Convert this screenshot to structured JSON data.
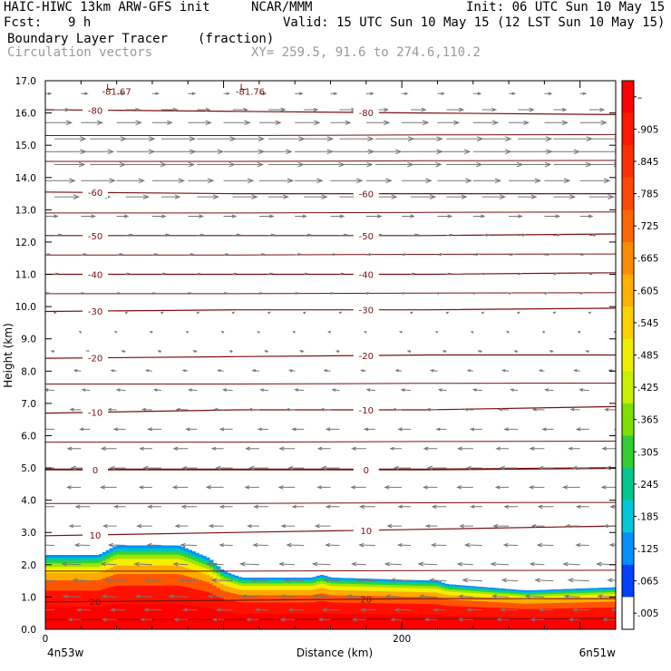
{
  "header": {
    "model": "HAIC-HIWC 13km ARW-GFS init",
    "org": "NCAR/MMM",
    "init": "Init: 06 UTC Sun 10 May 15",
    "fcst_label": "Fcst:",
    "fcst_value": "9 h",
    "valid": "Valid: 15 UTC Sun 10 May 15 (12 LST Sun 10 May 15)",
    "field": "Boundary Layer Tracer",
    "units": "(fraction)",
    "vectors": "Circulation vectors",
    "xy": "XY= 259.5, 91.6 to 274.6,110.2"
  },
  "chart_data": {
    "type": "heatmap",
    "ylabel": "Height (km)",
    "xlabel": "Distance (km)",
    "ylim": [
      0,
      17
    ],
    "yticks": [
      "0.0",
      "1.0",
      "2.0",
      "3.0",
      "4.0",
      "5.0",
      "6.0",
      "7.0",
      "8.0",
      "9.0",
      "10.0",
      "11.0",
      "12.0",
      "13.0",
      "14.0",
      "15.0",
      "16.0",
      "17.0"
    ],
    "xlim": [
      0,
      320
    ],
    "xticks": [
      {
        "value": 0,
        "label": "0"
      },
      {
        "value": 200,
        "label": "200"
      }
    ],
    "x_end_labels": {
      "left": "4n53w",
      "right": "6n51w"
    },
    "colorbar": {
      "labels": [
        "–",
        ".905",
        ".845",
        ".785",
        ".725",
        ".665",
        ".605",
        ".545",
        ".485",
        ".425",
        ".365",
        ".305",
        ".245",
        ".185",
        ".125",
        ".065",
        ".005"
      ],
      "colors": [
        "#ff0000",
        "#ff1800",
        "#ff3000",
        "#ff4800",
        "#ff6800",
        "#ff8c00",
        "#ffb000",
        "#ffd000",
        "#f0ee00",
        "#c8f000",
        "#7ee000",
        "#30d030",
        "#00c890",
        "#00c8d8",
        "#0090ff",
        "#0040ff",
        "#ffffff"
      ]
    },
    "tracer_top_km": [
      [
        0,
        2.3
      ],
      [
        30,
        2.3
      ],
      [
        40,
        2.6
      ],
      [
        75,
        2.6
      ],
      [
        92,
        2.2
      ],
      [
        100,
        1.8
      ],
      [
        110,
        1.6
      ],
      [
        150,
        1.6
      ],
      [
        155,
        1.7
      ],
      [
        160,
        1.6
      ],
      [
        220,
        1.5
      ],
      [
        225,
        1.4
      ],
      [
        270,
        1.2
      ],
      [
        320,
        1.3
      ]
    ],
    "temperature_contours": [
      {
        "level": 20,
        "label": "20",
        "z": [
          0.85,
          0.9,
          0.95,
          0.95
        ]
      },
      {
        "level": 10,
        "label": "10",
        "z": [
          2.9,
          3.0,
          3.1,
          3.2
        ]
      },
      {
        "level": 0,
        "label": "0",
        "z": [
          4.95,
          4.95,
          4.95,
          5.0
        ]
      },
      {
        "level": -10,
        "label": "-10",
        "z": [
          6.7,
          6.8,
          6.8,
          6.9
        ]
      },
      {
        "level": -20,
        "label": "-20",
        "z": [
          8.4,
          8.45,
          8.5,
          8.5
        ]
      },
      {
        "level": -30,
        "label": "-30",
        "z": [
          9.85,
          9.9,
          9.9,
          9.95
        ]
      },
      {
        "level": -40,
        "label": "-40",
        "z": [
          11.0,
          11.0,
          11.0,
          11.05
        ]
      },
      {
        "level": -50,
        "label": "-50",
        "z": [
          12.2,
          12.2,
          12.2,
          12.25
        ]
      },
      {
        "level": -60,
        "label": "-60",
        "z": [
          13.55,
          13.5,
          13.5,
          13.5
        ]
      },
      {
        "level": -80,
        "label": "-80",
        "z": [
          16.1,
          16.05,
          16.0,
          15.95
        ]
      }
    ],
    "temperature_lines_unlabeled_km": [
      0.3,
      1.8,
      3.9,
      5.8,
      7.6,
      10.4,
      11.6,
      12.9,
      14.5,
      15.3
    ],
    "minimum_labels": [
      {
        "text": "-81.67",
        "x": 40,
        "z": 16.9
      },
      {
        "text": "-81.76",
        "x": 115,
        "z": 16.9
      }
    ],
    "wind_profile": [
      {
        "z": 0.3,
        "u": -1.5,
        "w": 0.0
      },
      {
        "z": 0.6,
        "u": -1.8,
        "w": 0.0
      },
      {
        "z": 1.0,
        "u": -2.0,
        "w": 0.1
      },
      {
        "z": 1.5,
        "u": -2.2,
        "w": 0.1
      },
      {
        "z": 2.0,
        "u": -2.0,
        "w": 0.1
      },
      {
        "z": 2.6,
        "u": -1.8,
        "w": 0.05
      },
      {
        "z": 3.2,
        "u": -1.6,
        "w": 0.0
      },
      {
        "z": 3.8,
        "u": -1.6,
        "w": 0.0
      },
      {
        "z": 4.4,
        "u": -1.8,
        "w": 0.0
      },
      {
        "z": 5.0,
        "u": -2.0,
        "w": 0.0
      },
      {
        "z": 5.6,
        "u": -1.6,
        "w": 0.0
      },
      {
        "z": 6.2,
        "u": -1.4,
        "w": 0.0
      },
      {
        "z": 6.8,
        "u": -1.2,
        "w": 0.05
      },
      {
        "z": 7.4,
        "u": -1.0,
        "w": 0.1
      },
      {
        "z": 8.0,
        "u": -0.7,
        "w": 0.1
      },
      {
        "z": 8.6,
        "u": -0.4,
        "w": 0.1
      },
      {
        "z": 9.2,
        "u": -0.2,
        "w": 0.1
      },
      {
        "z": 9.8,
        "u": 0.2,
        "w": 0.1
      },
      {
        "z": 10.4,
        "u": 0.3,
        "w": 0.1
      },
      {
        "z": 11.0,
        "u": 0.4,
        "w": 0.1
      },
      {
        "z": 11.6,
        "u": 0.6,
        "w": 0.1
      },
      {
        "z": 12.2,
        "u": 0.8,
        "w": 0.1
      },
      {
        "z": 12.8,
        "u": 1.6,
        "w": 0.0
      },
      {
        "z": 13.4,
        "u": 2.6,
        "w": 0.0
      },
      {
        "z": 13.9,
        "u": 3.6,
        "w": 0.0
      },
      {
        "z": 14.4,
        "u": 4.3,
        "w": 0.0
      },
      {
        "z": 14.8,
        "u": 4.6,
        "w": 0.0
      },
      {
        "z": 15.2,
        "u": 4.1,
        "w": 0.0
      },
      {
        "z": 15.7,
        "u": 2.8,
        "w": 0.0
      },
      {
        "z": 16.1,
        "u": 1.8,
        "w": 0.0
      },
      {
        "z": 16.6,
        "u": 0.8,
        "w": 0.0
      }
    ],
    "wind_columns_km": [
      0,
      20,
      40,
      60,
      80,
      100,
      120,
      140,
      160,
      180,
      200,
      220,
      240,
      260,
      280,
      300,
      320
    ]
  }
}
